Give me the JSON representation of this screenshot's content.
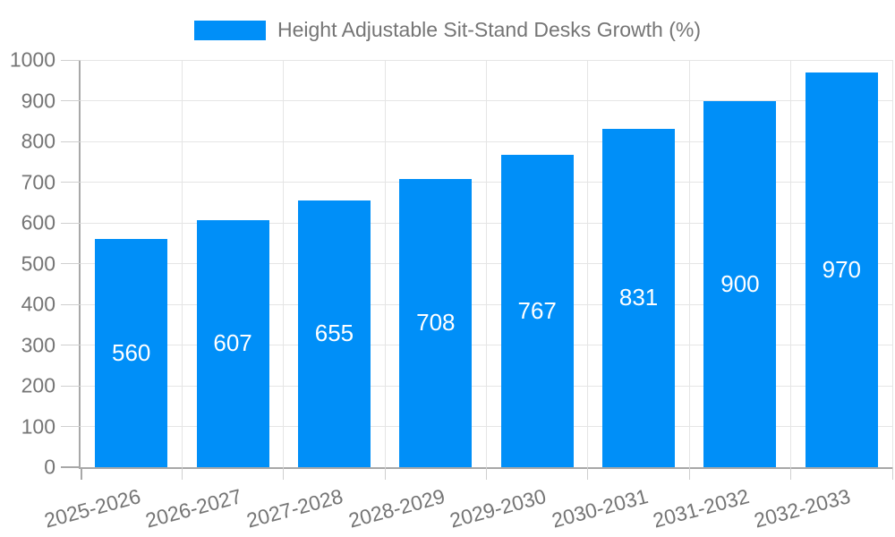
{
  "chart_data": {
    "type": "bar",
    "title": "Height Adjustable Sit-Stand Desks Growth (%)",
    "xlabel": "",
    "ylabel": "",
    "categories": [
      "2025-2026",
      "2026-2027",
      "2027-2028",
      "2028-2029",
      "2029-2030",
      "2030-2031",
      "2031-2032",
      "2032-2033"
    ],
    "values": [
      560,
      607,
      655,
      708,
      767,
      831,
      900,
      970
    ],
    "ylim": [
      0,
      1000
    ],
    "ytick_step": 100,
    "grid": true,
    "legend_position": "top-center",
    "x_label_rotation_deg": -15,
    "colors": {
      "bar": "#008ff8",
      "axis_text": "#757575",
      "data_label": "#ffffff",
      "axis_line": "#a8a8a8",
      "gridline": "#e5e5e5",
      "tick": "#cfcfcf",
      "background": "#ffffff"
    }
  }
}
